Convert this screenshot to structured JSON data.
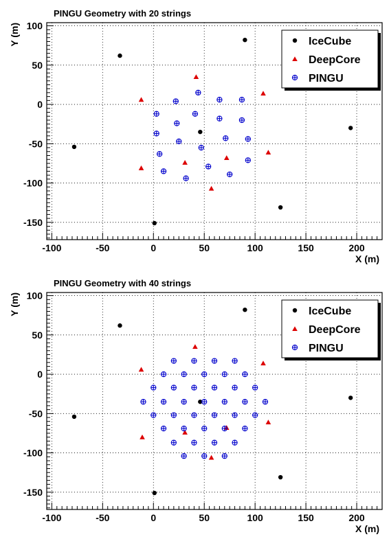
{
  "chart_data": [
    {
      "type": "scatter",
      "title": "PINGU Geometry with 20 strings",
      "xlabel": "X (m)",
      "ylabel": "Y (m)",
      "xlim": [
        -105,
        225
      ],
      "ylim": [
        -172,
        104
      ],
      "xticks": [
        -100,
        -50,
        0,
        50,
        100,
        150,
        200
      ],
      "yticks": [
        -150,
        -100,
        -50,
        0,
        50,
        100
      ],
      "grid": true,
      "legend_position": "top-right",
      "series": [
        {
          "name": "IceCube",
          "color": "#000000",
          "marker": "circle",
          "x": [
            -33,
            90,
            -78,
            46,
            194,
            125,
            1
          ],
          "y": [
            62,
            82,
            -54,
            -35,
            -30,
            -131,
            -151
          ]
        },
        {
          "name": "DeepCore",
          "color": "#dd0000",
          "marker": "triangle",
          "x": [
            -12,
            42,
            108,
            -12,
            31,
            72,
            113,
            57
          ],
          "y": [
            6,
            35,
            14,
            -81,
            -74,
            -68,
            -61,
            -107
          ]
        },
        {
          "name": "PINGU",
          "color": "#0000cc",
          "marker": "cross-circle",
          "x": [
            3,
            22,
            44,
            65,
            87,
            3,
            23,
            41,
            65,
            87,
            6,
            25,
            47,
            71,
            93,
            10,
            32,
            54,
            75,
            93
          ],
          "y": [
            -12,
            4,
            15,
            6,
            6,
            -37,
            -24,
            -12,
            -18,
            -20,
            -63,
            -47,
            -55,
            -43,
            -44,
            -85,
            -94,
            -79,
            -89,
            -71
          ]
        }
      ]
    },
    {
      "type": "scatter",
      "title": "PINGU Geometry with 40 strings",
      "xlabel": "X (m)",
      "ylabel": "Y (m)",
      "xlim": [
        -105,
        225
      ],
      "ylim": [
        -172,
        104
      ],
      "xticks": [
        -100,
        -50,
        0,
        50,
        100,
        150,
        200
      ],
      "yticks": [
        -150,
        -100,
        -50,
        0,
        50,
        100
      ],
      "grid": true,
      "legend_position": "top-right",
      "series": [
        {
          "name": "IceCube",
          "color": "#000000",
          "marker": "circle",
          "x": [
            -33,
            90,
            -78,
            46,
            194,
            125,
            1
          ],
          "y": [
            62,
            82,
            -54,
            -35,
            -30,
            -131,
            -151
          ]
        },
        {
          "name": "DeepCore",
          "color": "#dd0000",
          "marker": "triangle",
          "x": [
            -12,
            41,
            108,
            -11,
            31,
            72,
            113,
            57
          ],
          "y": [
            6,
            35,
            14,
            -80,
            -74,
            -68,
            -61,
            -106
          ]
        },
        {
          "name": "PINGU",
          "color": "#0000cc",
          "marker": "cross-circle",
          "x": [
            20,
            40,
            60,
            80,
            10,
            30,
            50,
            70,
            90,
            0,
            20,
            40,
            60,
            80,
            100,
            -10,
            10,
            30,
            50,
            70,
            90,
            110,
            0,
            20,
            40,
            60,
            80,
            100,
            10,
            30,
            50,
            70,
            90,
            20,
            40,
            60,
            80,
            30,
            50,
            70
          ],
          "y": [
            17,
            17,
            17,
            17,
            0,
            0,
            0,
            0,
            0,
            -17,
            -17,
            -17,
            -17,
            -17,
            -17,
            -35,
            -35,
            -35,
            -35,
            -35,
            -35,
            -35,
            -52,
            -52,
            -52,
            -52,
            -52,
            -52,
            -69,
            -69,
            -69,
            -69,
            -69,
            -87,
            -87,
            -87,
            -87,
            -104,
            -104,
            -104
          ]
        }
      ]
    }
  ]
}
